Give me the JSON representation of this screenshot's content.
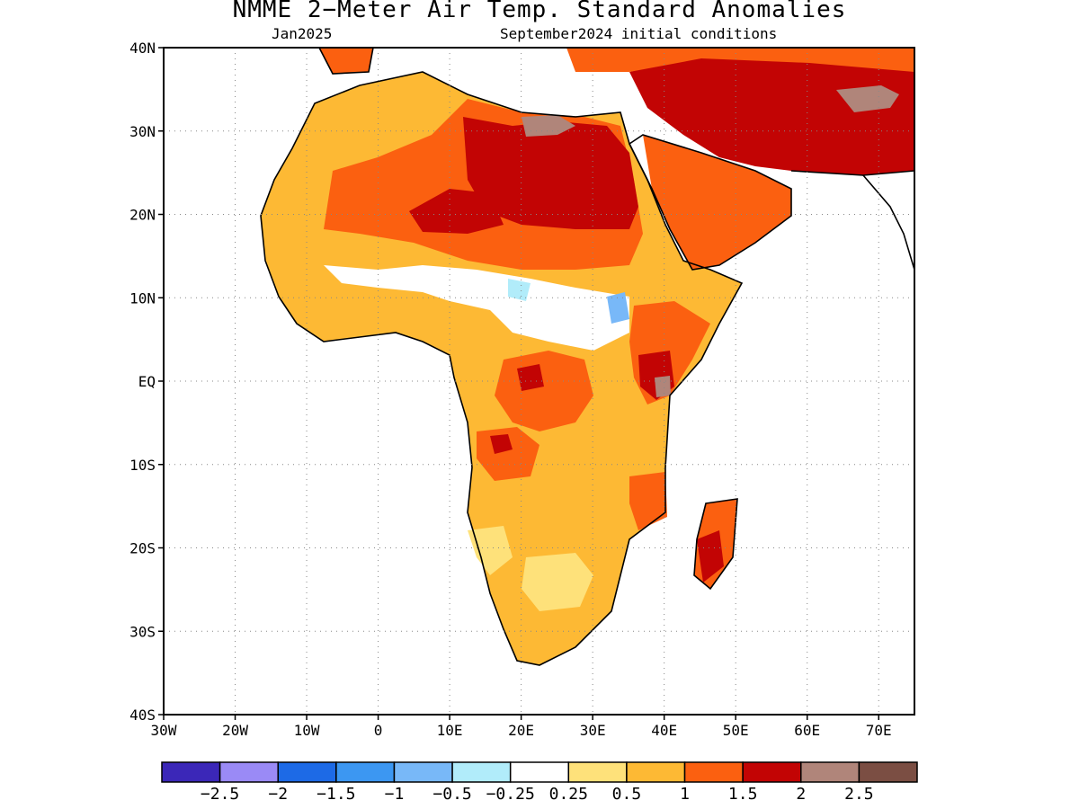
{
  "title": "NMME 2−Meter Air Temp. Standard Anomalies",
  "subtitle_left": "Jan2025",
  "subtitle_right": "September2024 initial conditions",
  "map": {
    "lon_range": [
      -30,
      75
    ],
    "lat_range": [
      -40,
      40
    ],
    "grid": "dotted",
    "y_ticks": [
      {
        "value": 40,
        "label": "40N"
      },
      {
        "value": 30,
        "label": "30N"
      },
      {
        "value": 20,
        "label": "20N"
      },
      {
        "value": 10,
        "label": "10N"
      },
      {
        "value": 0,
        "label": "EQ"
      },
      {
        "value": -10,
        "label": "10S"
      },
      {
        "value": -20,
        "label": "20S"
      },
      {
        "value": -30,
        "label": "30S"
      },
      {
        "value": -40,
        "label": "40S"
      }
    ],
    "x_ticks": [
      {
        "value": -30,
        "label": "30W"
      },
      {
        "value": -20,
        "label": "20W"
      },
      {
        "value": -10,
        "label": "10W"
      },
      {
        "value": 0,
        "label": "0"
      },
      {
        "value": 10,
        "label": "10E"
      },
      {
        "value": 20,
        "label": "20E"
      },
      {
        "value": 30,
        "label": "30E"
      },
      {
        "value": 40,
        "label": "40E"
      },
      {
        "value": 50,
        "label": "50E"
      },
      {
        "value": 60,
        "label": "60E"
      },
      {
        "value": 70,
        "label": "70E"
      }
    ]
  },
  "colorbar": {
    "colors": [
      "#3b27b8",
      "#9a8af6",
      "#1d6ae6",
      "#3c97f2",
      "#78b8f8",
      "#b1ecfa",
      "#ffffff",
      "#fee17a",
      "#fdb934",
      "#fb6010",
      "#c20404",
      "#b0857a",
      "#7b4e43"
    ],
    "labels": [
      "−2.5",
      "−2",
      "−1.5",
      "−1",
      "−0.5",
      "−0.25",
      "0.25",
      "0.5",
      "1",
      "1.5",
      "2",
      "2.5"
    ]
  }
}
